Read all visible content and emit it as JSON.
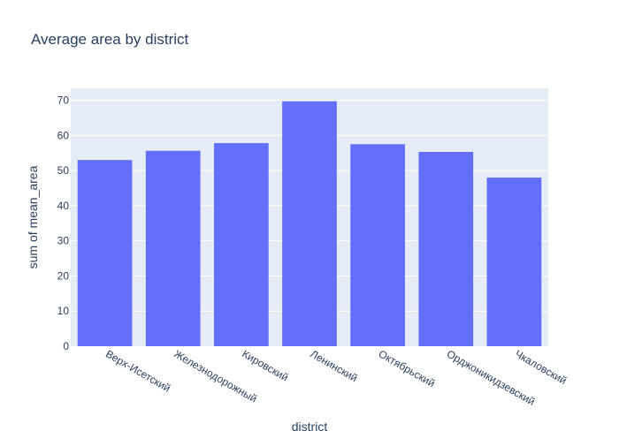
{
  "chart_data": {
    "type": "bar",
    "title": "Average area by district",
    "xlabel": "district",
    "ylabel": "sum of mean_area",
    "categories": [
      "Верх-Исетский",
      "Железнодорожный",
      "Кировский",
      "Ленинский",
      "Октябрьский",
      "Орджоникидзевский",
      "Чкаловский"
    ],
    "values": [
      53.0,
      55.6,
      57.8,
      69.7,
      57.5,
      55.3,
      48.0
    ],
    "ylim": [
      0,
      73.4
    ],
    "yticks": [
      0,
      10,
      20,
      30,
      40,
      50,
      60,
      70
    ],
    "grid": true,
    "colors": {
      "bar": "#636efa",
      "plot_background": "#e5ecf6",
      "gridline": "#ffffff",
      "text": "#2a3f5f"
    }
  }
}
